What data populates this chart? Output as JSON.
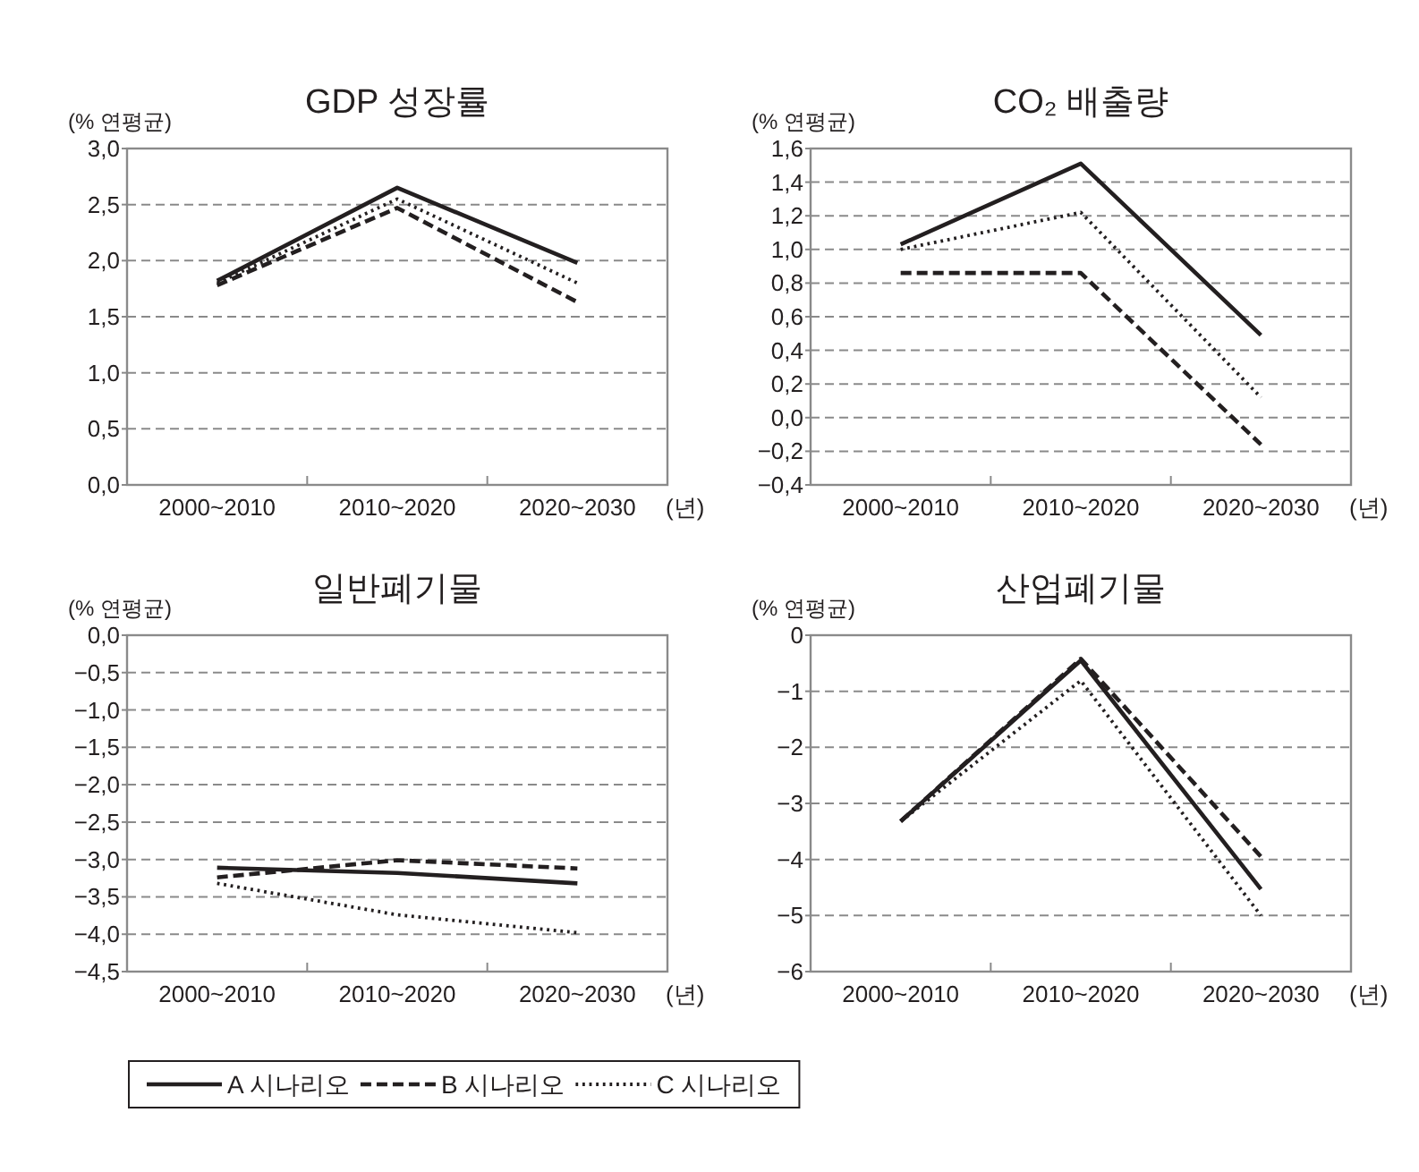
{
  "chart_data": [
    {
      "type": "line",
      "title": "GDP 성장률",
      "ylabel": "(% 연평균)",
      "xlabel": "(년)",
      "categories": [
        "2000~2010",
        "2010~2020",
        "2020~2030"
      ],
      "ylim": [
        0,
        3
      ],
      "yticks": [
        {
          "value": 0,
          "label": "0,0"
        },
        {
          "value": 0.5,
          "label": "0,5"
        },
        {
          "value": 1,
          "label": "1,0"
        },
        {
          "value": 1.5,
          "label": "1,5"
        },
        {
          "value": 2,
          "label": "2,0"
        },
        {
          "value": 2.5,
          "label": "2,5"
        },
        {
          "value": 3,
          "label": "3,0"
        }
      ],
      "grid": "y",
      "legend": false,
      "series": [
        {
          "color": "#231f20",
          "line_style": "solid",
          "values": [
            1.82,
            2.65,
            1.98
          ]
        },
        {
          "color": "#231f20",
          "line_style": "dashed",
          "values": [
            1.78,
            2.47,
            1.63
          ]
        },
        {
          "color": "#231f20",
          "line_style": "dotted",
          "values": [
            1.8,
            2.55,
            1.8
          ]
        }
      ]
    },
    {
      "type": "line",
      "title": "CO₂ 배출량",
      "ylabel": "(% 연평균)",
      "xlabel": "(년)",
      "categories": [
        "2000~2010",
        "2010~2020",
        "2020~2030"
      ],
      "ylim": [
        -0.4,
        1.6
      ],
      "yticks": [
        {
          "value": -0.4,
          "label": "−0,4"
        },
        {
          "value": -0.2,
          "label": "−0,2"
        },
        {
          "value": 0,
          "label": "0,0"
        },
        {
          "value": 0.2,
          "label": "0,2"
        },
        {
          "value": 0.4,
          "label": "0,4"
        },
        {
          "value": 0.6,
          "label": "0,6"
        },
        {
          "value": 0.8,
          "label": "0,8"
        },
        {
          "value": 1,
          "label": "1,0"
        },
        {
          "value": 1.2,
          "label": "1,2"
        },
        {
          "value": 1.4,
          "label": "1,4"
        },
        {
          "value": 1.6,
          "label": "1,6"
        }
      ],
      "grid": "y",
      "legend": false,
      "series": [
        {
          "color": "#231f20",
          "line_style": "solid",
          "values": [
            1.03,
            1.51,
            0.49
          ]
        },
        {
          "color": "#231f20",
          "line_style": "dashed",
          "values": [
            0.86,
            0.86,
            -0.16
          ]
        },
        {
          "color": "#231f20",
          "line_style": "dotted",
          "values": [
            1.0,
            1.22,
            0.12
          ]
        }
      ]
    },
    {
      "type": "line",
      "title": "일반폐기물",
      "ylabel": "(% 연평균)",
      "xlabel": "(년)",
      "categories": [
        "2000~2010",
        "2010~2020",
        "2020~2030"
      ],
      "ylim": [
        -4.5,
        0
      ],
      "yticks": [
        {
          "value": -4.5,
          "label": "−4,5"
        },
        {
          "value": -4,
          "label": "−4,0"
        },
        {
          "value": -3.5,
          "label": "−3,5"
        },
        {
          "value": -3,
          "label": "−3,0"
        },
        {
          "value": -2.5,
          "label": "−2,5"
        },
        {
          "value": -2,
          "label": "−2,0"
        },
        {
          "value": -1.5,
          "label": "−1,5"
        },
        {
          "value": -1,
          "label": "−1,0"
        },
        {
          "value": -0.5,
          "label": "−0,5"
        },
        {
          "value": 0,
          "label": "0,0"
        }
      ],
      "grid": "y",
      "legend": "bottom",
      "series": [
        {
          "name": "A 시나리오",
          "color": "#231f20",
          "line_style": "solid",
          "values": [
            -3.11,
            -3.18,
            -3.32
          ]
        },
        {
          "name": "B 시나리오",
          "color": "#231f20",
          "line_style": "dashed",
          "values": [
            -3.24,
            -3.01,
            -3.12
          ]
        },
        {
          "name": "C 시나리오",
          "color": "#231f20",
          "line_style": "dotted",
          "values": [
            -3.32,
            -3.74,
            -3.98
          ]
        }
      ]
    },
    {
      "type": "line",
      "title": "산업폐기물",
      "ylabel": "(% 연평균)",
      "xlabel": "(년)",
      "categories": [
        "2000~2010",
        "2010~2020",
        "2020~2030"
      ],
      "ylim": [
        -6,
        0
      ],
      "yticks": [
        {
          "value": -6,
          "label": "−6"
        },
        {
          "value": -5,
          "label": "−5"
        },
        {
          "value": -4,
          "label": "−4"
        },
        {
          "value": -3,
          "label": "−3"
        },
        {
          "value": -2,
          "label": "−2"
        },
        {
          "value": -1,
          "label": "−1"
        },
        0
      ],
      "grid": "y",
      "legend": false,
      "series": [
        {
          "color": "#231f20",
          "line_style": "solid",
          "values": [
            -3.32,
            -0.45,
            -4.53
          ]
        },
        {
          "color": "#231f20",
          "line_style": "dashed",
          "values": [
            -3.32,
            -0.42,
            -3.95
          ]
        },
        {
          "color": "#231f20",
          "line_style": "dotted",
          "values": [
            -3.32,
            -0.81,
            -5.0
          ]
        }
      ]
    }
  ]
}
